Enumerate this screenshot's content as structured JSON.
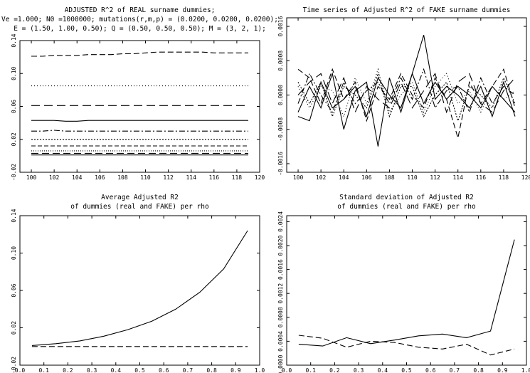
{
  "chart_data": [
    {
      "type": "line",
      "title_lines": [
        "ADJUSTED R^2 of REAL surname dummies;",
        "Ve =1.000; N0 =1000000; mutations(r,m,p) = (0.0200, 0.0200, 0.0200);",
        "E = (1.50, 1.00, 0.50); Q = (0.50, 0.50, 0.50); M = (3, 2, 1);"
      ],
      "xlim": [
        99,
        120
      ],
      "ylim": [
        -0.02,
        0.14
      ],
      "xticks": [
        100,
        102,
        104,
        106,
        108,
        110,
        112,
        114,
        116,
        118,
        120
      ],
      "xtick_labels": [
        "100",
        "102",
        "104",
        "106",
        "108",
        "110",
        "112",
        "114",
        "116",
        "118",
        "120"
      ],
      "yticks": [
        -0.02,
        0.02,
        0.06,
        0.1,
        0.14
      ],
      "ytick_labels": [
        "-0.02",
        "0.02",
        "0.06",
        "0.10",
        "0.14"
      ],
      "x": [
        100,
        101,
        102,
        103,
        104,
        105,
        106,
        107,
        108,
        109,
        110,
        111,
        112,
        113,
        114,
        115,
        116,
        117,
        118,
        119
      ],
      "series": [
        {
          "dash": "8,4",
          "values": [
            0.121,
            0.121,
            0.122,
            0.122,
            0.122,
            0.123,
            0.123,
            0.123,
            0.124,
            0.124,
            0.125,
            0.126,
            0.126,
            0.126,
            0.126,
            0.126,
            0.125,
            0.125,
            0.125,
            0.125
          ]
        },
        {
          "dash": "1,3",
          "values": [
            0.085,
            0.085,
            0.085,
            0.085,
            0.085,
            0.085,
            0.085,
            0.085,
            0.085,
            0.085,
            0.085,
            0.085,
            0.085,
            0.085,
            0.085,
            0.085,
            0.085,
            0.085,
            0.085,
            0.085
          ]
        },
        {
          "dash": "12,6",
          "values": [
            0.061,
            0.061,
            0.061,
            0.061,
            0.061,
            0.061,
            0.061,
            0.061,
            0.061,
            0.061,
            0.061,
            0.061,
            0.061,
            0.061,
            0.061,
            0.061,
            0.061,
            0.061,
            0.061,
            0.061
          ]
        },
        {
          "dash": "",
          "values": [
            0.043,
            0.043,
            0.043,
            0.042,
            0.042,
            0.043,
            0.043,
            0.043,
            0.043,
            0.043,
            0.043,
            0.043,
            0.043,
            0.043,
            0.043,
            0.043,
            0.043,
            0.043,
            0.043,
            0.043
          ]
        },
        {
          "dash": "8,3,2,3",
          "values": [
            0.03,
            0.03,
            0.031,
            0.03,
            0.03,
            0.03,
            0.03,
            0.03,
            0.03,
            0.03,
            0.03,
            0.03,
            0.03,
            0.03,
            0.03,
            0.03,
            0.03,
            0.03,
            0.03,
            0.03
          ]
        },
        {
          "dash": "2,2",
          "values": [
            0.02,
            0.02,
            0.02,
            0.02,
            0.02,
            0.02,
            0.02,
            0.02,
            0.02,
            0.02,
            0.02,
            0.02,
            0.02,
            0.02,
            0.02,
            0.02,
            0.02,
            0.02,
            0.02,
            0.02
          ]
        },
        {
          "dash": "6,3",
          "values": [
            0.012,
            0.012,
            0.012,
            0.012,
            0.012,
            0.012,
            0.012,
            0.012,
            0.012,
            0.012,
            0.012,
            0.012,
            0.012,
            0.012,
            0.012,
            0.012,
            0.012,
            0.012,
            0.012,
            0.012
          ]
        },
        {
          "dash": "1,2",
          "values": [
            0.006,
            0.006,
            0.006,
            0.006,
            0.006,
            0.006,
            0.006,
            0.006,
            0.006,
            0.006,
            0.006,
            0.006,
            0.006,
            0.006,
            0.006,
            0.006,
            0.006,
            0.006,
            0.006,
            0.006
          ]
        },
        {
          "dash": "10,5",
          "values": [
            0.003,
            0.003,
            0.003,
            0.003,
            0.003,
            0.003,
            0.003,
            0.003,
            0.003,
            0.003,
            0.003,
            0.003,
            0.003,
            0.003,
            0.003,
            0.003,
            0.003,
            0.003,
            0.003,
            0.003
          ]
        },
        {
          "dash": "",
          "values": [
            0.001,
            0.001,
            0.001,
            0.001,
            0.001,
            0.001,
            0.001,
            0.001,
            0.001,
            0.001,
            0.001,
            0.001,
            0.001,
            0.001,
            0.001,
            0.001,
            0.001,
            0.001,
            0.001,
            0.001
          ]
        }
      ]
    },
    {
      "type": "line",
      "title_lines": [
        "Time series of Adjusted R^2 of FAKE surname dummies"
      ],
      "xlim": [
        99,
        120
      ],
      "ylim": [
        -0.0018,
        0.0018
      ],
      "xticks": [
        100,
        102,
        104,
        106,
        108,
        110,
        112,
        114,
        116,
        118,
        120
      ],
      "xtick_labels": [
        "100",
        "102",
        "104",
        "106",
        "108",
        "110",
        "112",
        "114",
        "116",
        "118",
        "120"
      ],
      "yticks": [
        -0.0016,
        -0.0008,
        0.0,
        0.0008,
        0.0016
      ],
      "ytick_labels": [
        "-0.0016",
        "-0.0008",
        "0.0000",
        "0.0008",
        "0.0016"
      ],
      "x": [
        100,
        101,
        102,
        103,
        104,
        105,
        106,
        107,
        108,
        109,
        110,
        111,
        112,
        113,
        114,
        115,
        116,
        117,
        118,
        119
      ],
      "series": [
        {
          "dash": "",
          "values": [
            -0.0005,
            -0.0006,
            0.0003,
            -0.0003,
            -0.0001,
            0.0002,
            -0.0005,
            0.0004,
            0.0,
            -0.0003,
            0.0005,
            0.0014,
            -0.0001,
            0.0002,
            0.0,
            -0.0003,
            0.0002,
            -0.0005,
            0.0003,
            -0.0005
          ]
        },
        {
          "dash": "8,4",
          "values": [
            0.0006,
            0.0004,
            -0.0002,
            0.0006,
            -0.0001,
            0.0003,
            -0.0006,
            0.0002,
            -0.0001,
            0.0005,
            0.0,
            -0.0003,
            0.0004,
            -0.0001,
            -0.001,
            0.0003,
            -0.0002,
            0.0002,
            0.0006,
            -0.0003
          ]
        },
        {
          "dash": "1,3",
          "values": [
            0.0002,
            -0.0003,
            0.0002,
            0.0001,
            -0.0005,
            0.0004,
            -0.0002,
            0.0006,
            -0.0004,
            0.0,
            0.0003,
            -0.0004,
            0.0002,
            0.0005,
            -0.0002,
            0.0001,
            -0.0004,
            0.0002,
            -0.0001,
            0.0001
          ]
        },
        {
          "dash": "",
          "values": [
            -0.0004,
            0.0002,
            -0.0003,
            0.0005,
            -0.0008,
            0.0001,
            0.0003,
            -0.0012,
            0.0004,
            -0.0004,
            0.0005,
            -0.0002,
            0.0003,
            -0.0001,
            0.0002,
            0.0,
            -0.0003,
            0.0002,
            -0.0001,
            -0.0004
          ]
        },
        {
          "dash": "12,6",
          "values": [
            0.0,
            0.0003,
            0.0005,
            -0.0002,
            0.0004,
            -0.0004,
            0.0002,
            -0.0001,
            -0.0003,
            0.0003,
            -0.0003,
            0.0001,
            0.0005,
            -0.0004,
            0.0003,
            0.0005,
            -0.0002,
            -0.0004,
            0.0001,
            0.0004
          ]
        },
        {
          "dash": "8,3,2,3",
          "values": [
            -0.0002,
            0.0005,
            0.0,
            -0.0004,
            0.0003,
            -0.0002,
            0.0001,
            0.0003,
            -0.0002,
            0.0004,
            -0.0001,
            0.0006,
            -0.0003,
            0.0001,
            0.0002,
            -0.0004,
            0.0004,
            -0.0002,
            0.0002,
            0.0
          ]
        },
        {
          "dash": "2,2",
          "values": [
            0.0003,
            -0.0002,
            0.0003,
            -0.0005,
            0.0002,
            0.0,
            -0.0003,
            0.0005,
            -0.0005,
            0.0002,
            0.0002,
            -0.0005,
            0.0,
            0.0003,
            -0.0006,
            0.0002,
            0.0,
            -0.0003,
            0.0004,
            -0.0002
          ]
        }
      ]
    },
    {
      "type": "line",
      "title_lines": [
        "Average Adjusted R2",
        "of dummies (real and FAKE) per rho"
      ],
      "xlim": [
        0.0,
        1.0
      ],
      "ylim": [
        -0.02,
        0.14
      ],
      "xticks": [
        0.0,
        0.1,
        0.2,
        0.3,
        0.4,
        0.5,
        0.6,
        0.7,
        0.8,
        0.9,
        1.0
      ],
      "xtick_labels": [
        "0.0",
        "0.1",
        "0.2",
        "0.3",
        "0.4",
        "0.5",
        "0.6",
        "0.7",
        "0.8",
        "0.9",
        "1.0"
      ],
      "yticks": [
        -0.02,
        0.02,
        0.06,
        0.1,
        0.14
      ],
      "ytick_labels": [
        "-0.02",
        "0.02",
        "0.06",
        "0.10",
        "0.14"
      ],
      "x": [
        0.05,
        0.15,
        0.25,
        0.35,
        0.45,
        0.55,
        0.65,
        0.75,
        0.85,
        0.95
      ],
      "series": [
        {
          "dash": "",
          "values": [
            0.001,
            0.003,
            0.006,
            0.011,
            0.018,
            0.027,
            0.04,
            0.058,
            0.083,
            0.124
          ]
        },
        {
          "dash": "8,4",
          "values": [
            0.0,
            0.0,
            0.0,
            0.0,
            0.0,
            0.0,
            0.0,
            0.0,
            0.0,
            0.0
          ]
        }
      ]
    },
    {
      "type": "line",
      "title_lines": [
        "Standard deviation of Adjusted R2",
        "of dummies (real and FAKE) per rho"
      ],
      "xlim": [
        0.0,
        1.0
      ],
      "ylim": [
        0.0,
        0.0025
      ],
      "xticks": [
        0.0,
        0.1,
        0.2,
        0.3,
        0.4,
        0.5,
        0.6,
        0.7,
        0.8,
        0.9,
        1.0
      ],
      "xtick_labels": [
        "0.0",
        "0.1",
        "0.2",
        "0.3",
        "0.4",
        "0.5",
        "0.6",
        "0.7",
        "0.8",
        "0.9",
        "1.0"
      ],
      "yticks": [
        0.0,
        0.0004,
        0.0008,
        0.0012,
        0.0016,
        0.002,
        0.0024
      ],
      "ytick_labels": [
        "0.0000",
        "0.0004",
        "0.0008",
        "0.0012",
        "0.0016",
        "0.0020",
        "0.0024"
      ],
      "x": [
        0.05,
        0.15,
        0.25,
        0.35,
        0.45,
        0.55,
        0.65,
        0.75,
        0.85,
        0.95
      ],
      "series": [
        {
          "dash": "",
          "values": [
            0.00035,
            0.00032,
            0.00046,
            0.00036,
            0.00042,
            0.00049,
            0.00052,
            0.00046,
            0.00057,
            0.0021
          ]
        },
        {
          "dash": "8,4",
          "values": [
            0.0005,
            0.00045,
            0.0003,
            0.0004,
            0.00038,
            0.0003,
            0.00027,
            0.00035,
            0.00017,
            0.00027
          ]
        }
      ]
    }
  ]
}
